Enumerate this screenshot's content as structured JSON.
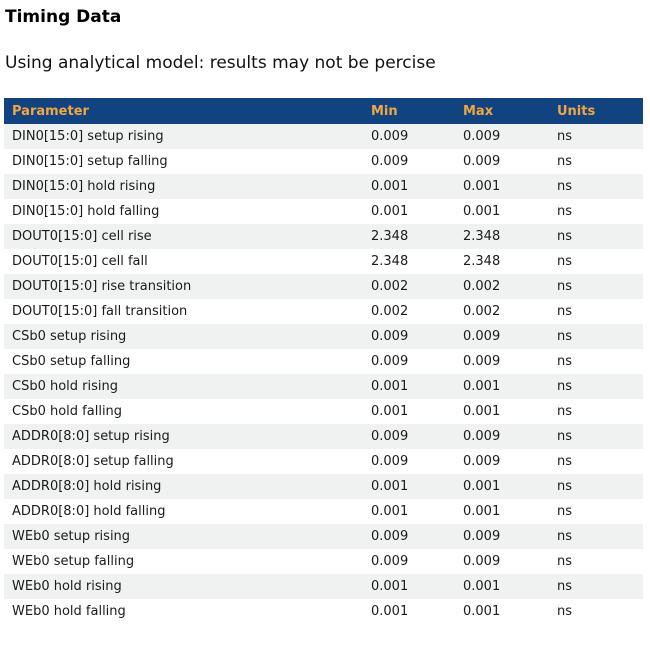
{
  "page": {
    "title": "Timing Data",
    "subtitle": "Using analytical model: results may not be percise"
  },
  "table": {
    "columns": [
      "Parameter",
      "Min",
      "Max",
      "Units"
    ],
    "rows": [
      {
        "parameter": "DIN0[15:0] setup rising",
        "min": "0.009",
        "max": "0.009",
        "units": "ns"
      },
      {
        "parameter": "DIN0[15:0] setup falling",
        "min": "0.009",
        "max": "0.009",
        "units": "ns"
      },
      {
        "parameter": "DIN0[15:0] hold rising",
        "min": "0.001",
        "max": "0.001",
        "units": "ns"
      },
      {
        "parameter": "DIN0[15:0] hold falling",
        "min": "0.001",
        "max": "0.001",
        "units": "ns"
      },
      {
        "parameter": "DOUT0[15:0] cell rise",
        "min": "2.348",
        "max": "2.348",
        "units": "ns"
      },
      {
        "parameter": "DOUT0[15:0] cell fall",
        "min": "2.348",
        "max": "2.348",
        "units": "ns"
      },
      {
        "parameter": "DOUT0[15:0] rise transition",
        "min": "0.002",
        "max": "0.002",
        "units": "ns"
      },
      {
        "parameter": "DOUT0[15:0] fall transition",
        "min": "0.002",
        "max": "0.002",
        "units": "ns"
      },
      {
        "parameter": "CSb0 setup rising",
        "min": "0.009",
        "max": "0.009",
        "units": "ns"
      },
      {
        "parameter": "CSb0 setup falling",
        "min": "0.009",
        "max": "0.009",
        "units": "ns"
      },
      {
        "parameter": "CSb0 hold rising",
        "min": "0.001",
        "max": "0.001",
        "units": "ns"
      },
      {
        "parameter": "CSb0 hold falling",
        "min": "0.001",
        "max": "0.001",
        "units": "ns"
      },
      {
        "parameter": "ADDR0[8:0] setup rising",
        "min": "0.009",
        "max": "0.009",
        "units": "ns"
      },
      {
        "parameter": "ADDR0[8:0] setup falling",
        "min": "0.009",
        "max": "0.009",
        "units": "ns"
      },
      {
        "parameter": "ADDR0[8:0] hold rising",
        "min": "0.001",
        "max": "0.001",
        "units": "ns"
      },
      {
        "parameter": "ADDR0[8:0] hold falling",
        "min": "0.001",
        "max": "0.001",
        "units": "ns"
      },
      {
        "parameter": "WEb0 setup rising",
        "min": "0.009",
        "max": "0.009",
        "units": "ns"
      },
      {
        "parameter": "WEb0 setup falling",
        "min": "0.009",
        "max": "0.009",
        "units": "ns"
      },
      {
        "parameter": "WEb0 hold rising",
        "min": "0.001",
        "max": "0.001",
        "units": "ns"
      },
      {
        "parameter": "WEb0 hold falling",
        "min": "0.001",
        "max": "0.001",
        "units": "ns"
      }
    ]
  },
  "colors": {
    "header_background": "#114381",
    "header_text": "#F2A63E",
    "alternate_row_background": "#F0F1F1",
    "row_text": "#1B1B1B"
  }
}
